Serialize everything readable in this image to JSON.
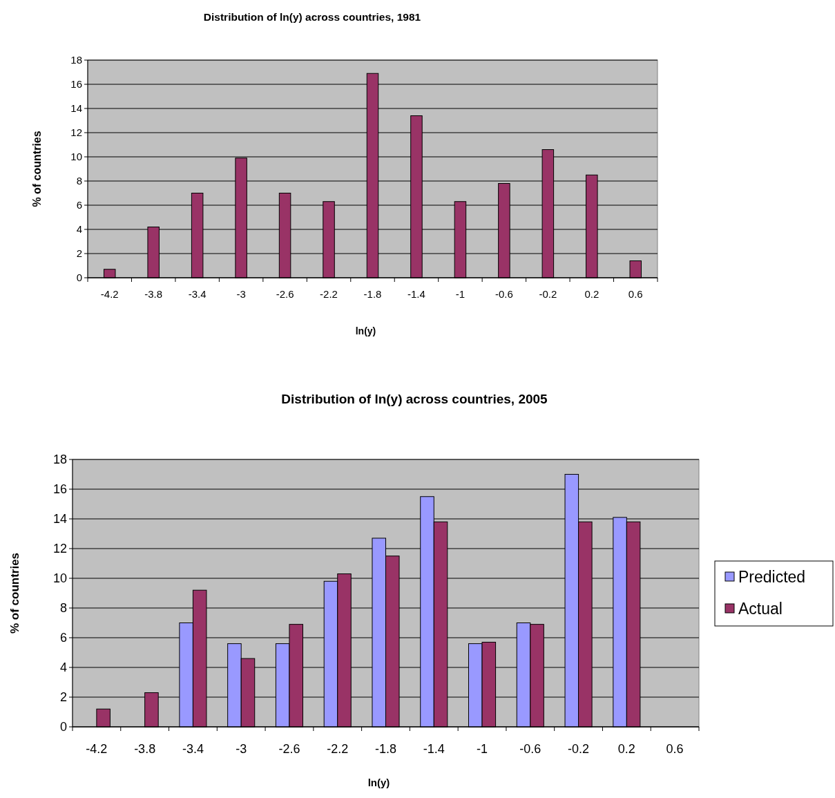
{
  "chart_data": [
    {
      "type": "bar",
      "title": "Distribution of ln(y) across countries, 1981",
      "xlabel": "ln(y)",
      "ylabel": "% of countries",
      "categories": [
        "-4.2",
        "-3.8",
        "-3.4",
        "-3",
        "-2.6",
        "-2.2",
        "-1.8",
        "-1.4",
        "-1",
        "-0.6",
        "-0.2",
        "0.2",
        "0.6"
      ],
      "values": [
        0.7,
        4.2,
        7,
        9.9,
        7,
        6.3,
        16.9,
        13.4,
        6.3,
        7.8,
        10.6,
        8.5,
        1.4
      ],
      "color": "#993366",
      "ylim": [
        0,
        18
      ],
      "yticks": [
        0,
        2,
        4,
        6,
        8,
        10,
        12,
        14,
        16,
        18
      ],
      "grid": "y",
      "legend": false
    },
    {
      "type": "bar",
      "title": "Distribution of ln(y) across countries, 2005",
      "xlabel": "ln(y)",
      "ylabel": "% of countries",
      "categories": [
        "-4.2",
        "-3.8",
        "-3.4",
        "-3",
        "-2.6",
        "-2.2",
        "-1.8",
        "-1.4",
        "-1",
        "-0.6",
        "-0.2",
        "0.2",
        "0.6"
      ],
      "series": [
        {
          "name": "Predicted",
          "color": "#9999ff",
          "values": [
            0,
            0,
            7.0,
            5.6,
            5.6,
            9.8,
            12.7,
            15.5,
            5.6,
            7.0,
            17.0,
            14.1,
            null
          ]
        },
        {
          "name": "Actual",
          "color": "#993366",
          "values": [
            1.2,
            2.3,
            9.2,
            4.6,
            6.9,
            10.3,
            11.5,
            13.8,
            5.7,
            6.9,
            13.8,
            13.8,
            null
          ]
        }
      ],
      "ylim": [
        0,
        18
      ],
      "yticks": [
        0,
        2,
        4,
        6,
        8,
        10,
        12,
        14,
        16,
        18
      ],
      "grid": "y",
      "legend": "right"
    }
  ]
}
